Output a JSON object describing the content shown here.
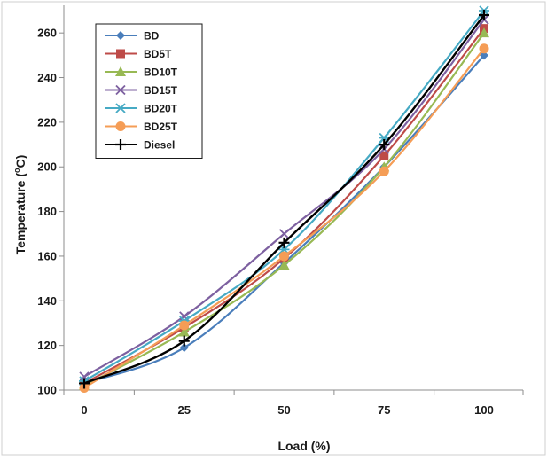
{
  "chart_data": {
    "type": "line",
    "title": "",
    "xlabel": "Load (%)",
    "ylabel_main": "Temperature (",
    "ylabel_sup": "o",
    "ylabel_end": "C)",
    "x": [
      0,
      25,
      50,
      75,
      100
    ],
    "x_tick_labels": [
      "0",
      "25",
      "50",
      "75",
      "100"
    ],
    "xlim": [
      0,
      100
    ],
    "ylim": [
      100,
      270
    ],
    "y_ticks": [
      100,
      120,
      140,
      160,
      180,
      200,
      220,
      240,
      260
    ],
    "y_tick_labels": [
      "100",
      "120",
      "140",
      "160",
      "180",
      "200",
      "220",
      "240",
      "260"
    ],
    "grid": false,
    "legend_position": "top-left",
    "series": [
      {
        "name": "BD",
        "marker": "diamond",
        "color": "#4a7ebb",
        "values": [
          103,
          119,
          157,
          200,
          250
        ]
      },
      {
        "name": "BD5T",
        "marker": "square",
        "color": "#be4b48",
        "values": [
          103,
          128,
          159,
          205,
          262
        ]
      },
      {
        "name": "BD10T",
        "marker": "triangle",
        "color": "#98b954",
        "values": [
          102,
          126,
          156,
          200,
          260
        ]
      },
      {
        "name": "BD15T",
        "marker": "x",
        "color": "#7d60a0",
        "values": [
          106,
          133,
          170,
          208,
          266
        ]
      },
      {
        "name": "BD20T",
        "marker": "asterisk",
        "color": "#46aac4",
        "values": [
          104,
          131,
          163,
          213,
          270
        ]
      },
      {
        "name": "BD25T",
        "marker": "circle",
        "color": "#f59d56",
        "values": [
          101,
          129,
          160,
          198,
          253
        ]
      },
      {
        "name": "Diesel",
        "marker": "plus",
        "color": "#000000",
        "values": [
          103,
          122,
          166,
          210,
          268
        ]
      }
    ]
  }
}
